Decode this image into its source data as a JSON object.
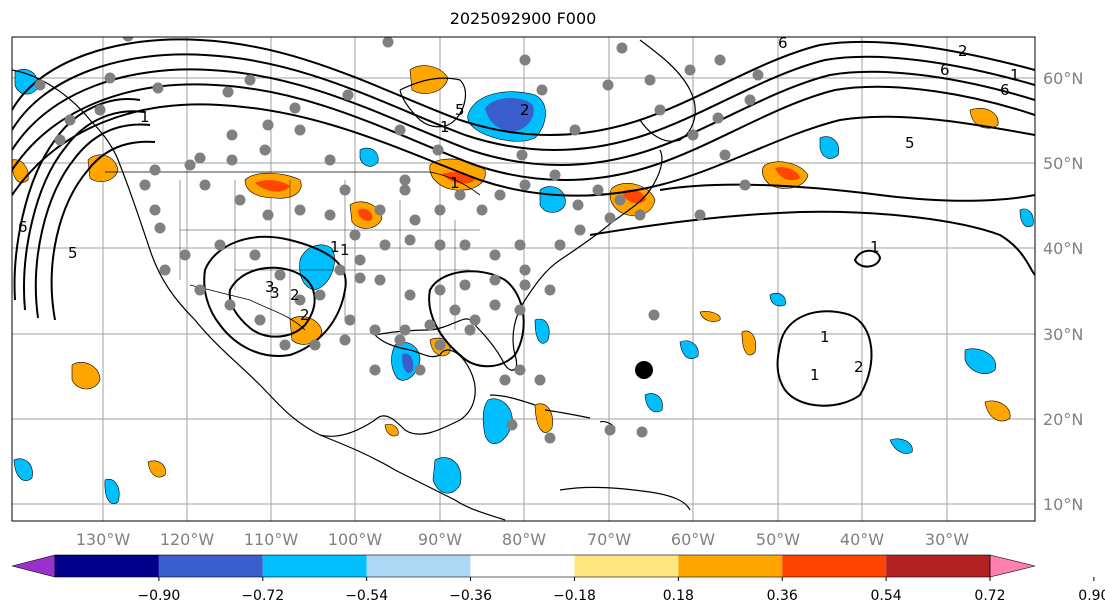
{
  "title": "2025092900 F000",
  "map": {
    "longitude_labels": [
      "130°W",
      "120°W",
      "110°W",
      "100°W",
      "90°W",
      "80°W",
      "70°W",
      "60°W",
      "50°W",
      "40°W",
      "30°W"
    ],
    "latitude_labels": [
      "60°N",
      "50°N",
      "40°N",
      "30°N",
      "20°N",
      "10°N"
    ],
    "contour_labels": [
      "6",
      "5",
      "3",
      "2",
      "1",
      "5",
      "1",
      "1",
      "6",
      "2",
      "6",
      "5",
      "1",
      "1",
      "2",
      "1",
      "3",
      "2",
      "1",
      "1",
      "2",
      "1",
      "6"
    ]
  },
  "colorbar": {
    "tick_labels": [
      "−0.90",
      "−0.72",
      "−0.54",
      "−0.36",
      "−0.18",
      "0.18",
      "0.36",
      "0.54",
      "0.72",
      "0.90"
    ],
    "colors": [
      "#9932cc",
      "#00008b",
      "#3a5fcd",
      "#00bfff",
      "#add8f5",
      "#ffffff",
      "#ffe680",
      "#ffa500",
      "#ff4500",
      "#b22222",
      "#ff7fb0"
    ]
  },
  "colors": {
    "frame": "#000000",
    "grid": "#a0a0a0",
    "station_dot": "#808080",
    "storm_marker": "#000000"
  }
}
